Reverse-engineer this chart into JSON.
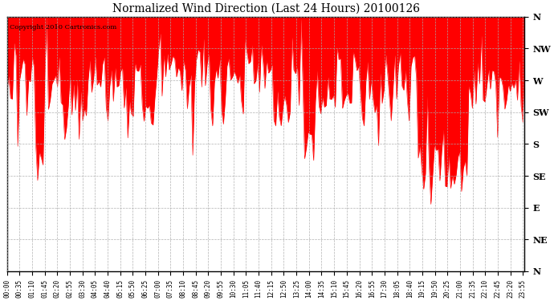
{
  "title": "Normalized Wind Direction (Last 24 Hours) 20100126",
  "copyright_text": "Copyright 2010 Cartronics.com",
  "line_color": "#ff0000",
  "fill_color": "#ff0000",
  "background_color": "#ffffff",
  "plot_bg_color": "#ffffff",
  "grid_color": "#aaaaaa",
  "ytick_labels": [
    "N",
    "NW",
    "W",
    "SW",
    "S",
    "SE",
    "E",
    "NE",
    "N"
  ],
  "ytick_values": [
    8,
    7,
    6,
    5,
    4,
    3,
    2,
    1,
    0
  ],
  "ylim": [
    0,
    8
  ],
  "num_points": 288,
  "figsize": [
    6.9,
    3.75
  ],
  "dpi": 100
}
